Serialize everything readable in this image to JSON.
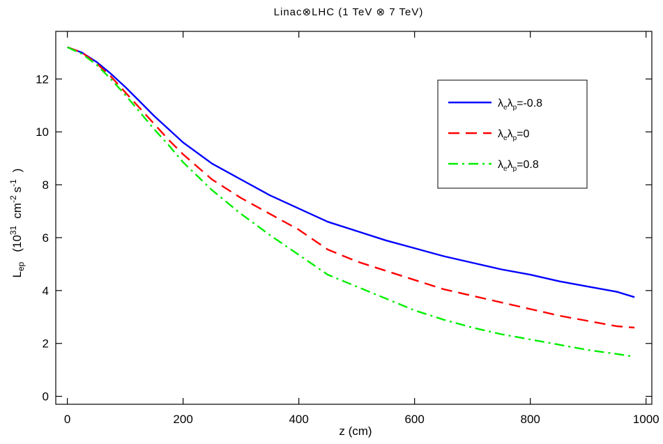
{
  "chart_data": {
    "type": "line",
    "title": "Linac⊗LHC  (1 TeV ⊗ 7 TeV)",
    "xlabel": "z  (cm)",
    "ylabel": {
      "main": "L",
      "sub": "ep",
      "paren_open": "(10",
      "exp1": "31",
      "units": "cm",
      "exp2": "-2",
      "units2": "s",
      "exp3": "-1",
      "paren_close": ")"
    },
    "xlim": [
      -20,
      1010
    ],
    "ylim": [
      -0.3,
      13.8
    ],
    "xticks": [
      0,
      200,
      400,
      600,
      800,
      1000
    ],
    "yticks": [
      0,
      2,
      4,
      6,
      8,
      10,
      12
    ],
    "grid": false,
    "legend": "top-right",
    "series": [
      {
        "name": "λeλp=-0.8",
        "legend_label": {
          "l1": "λ",
          "s1": "e",
          "l2": "λ",
          "s2": "p",
          "rest": "=-0.8"
        },
        "color": "#0000ff",
        "style": "solid",
        "x": [
          0,
          25,
          50,
          75,
          100,
          125,
          150,
          175,
          200,
          250,
          300,
          350,
          400,
          450,
          500,
          550,
          600,
          650,
          700,
          750,
          800,
          850,
          900,
          950,
          980
        ],
        "y": [
          13.2,
          13.0,
          12.65,
          12.2,
          11.7,
          11.15,
          10.6,
          10.1,
          9.6,
          8.8,
          8.2,
          7.6,
          7.1,
          6.6,
          6.25,
          5.9,
          5.6,
          5.3,
          5.05,
          4.8,
          4.6,
          4.35,
          4.15,
          3.95,
          3.75
        ]
      },
      {
        "name": "λeλp=0",
        "legend_label": {
          "l1": "λ",
          "s1": "e",
          "l2": "λ",
          "s2": "p",
          "rest": "=0"
        },
        "color": "#ff0000",
        "style": "dashed",
        "x": [
          0,
          25,
          50,
          75,
          100,
          125,
          150,
          175,
          200,
          250,
          300,
          350,
          400,
          450,
          500,
          550,
          600,
          650,
          700,
          750,
          800,
          850,
          900,
          950,
          980
        ],
        "y": [
          13.2,
          13.0,
          12.6,
          12.1,
          11.5,
          10.9,
          10.3,
          9.7,
          9.15,
          8.2,
          7.5,
          6.9,
          6.3,
          5.55,
          5.1,
          4.75,
          4.4,
          4.05,
          3.8,
          3.55,
          3.3,
          3.05,
          2.85,
          2.65,
          2.6
        ]
      },
      {
        "name": "λeλp=0.8",
        "legend_label": {
          "l1": "λ",
          "s1": "e",
          "l2": "λ",
          "s2": "p",
          "rest": "=0.8"
        },
        "color": "#00ee00",
        "style": "dashdot",
        "x": [
          0,
          25,
          50,
          75,
          100,
          125,
          150,
          175,
          200,
          250,
          300,
          350,
          400,
          450,
          500,
          550,
          600,
          650,
          700,
          750,
          800,
          850,
          900,
          950,
          980
        ],
        "y": [
          13.2,
          12.95,
          12.55,
          12.0,
          11.4,
          10.75,
          10.1,
          9.5,
          8.85,
          7.8,
          6.9,
          6.1,
          5.35,
          4.6,
          4.15,
          3.7,
          3.25,
          2.9,
          2.6,
          2.35,
          2.15,
          1.95,
          1.75,
          1.6,
          1.5
        ]
      }
    ]
  }
}
